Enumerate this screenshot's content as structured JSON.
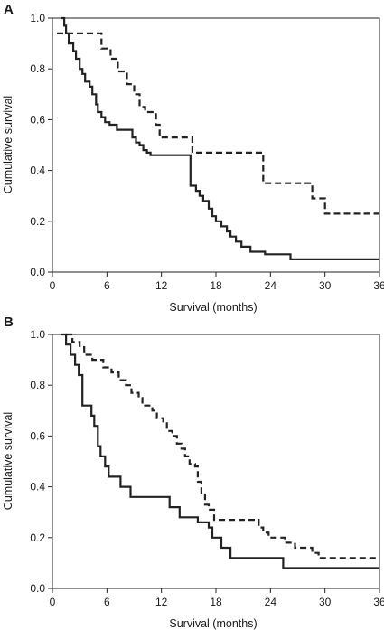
{
  "chart_data": [
    {
      "type": "line",
      "panel_label": "A",
      "xlabel": "Survival (months)",
      "ylabel": "Cumulative survival",
      "xlim": [
        0,
        36
      ],
      "ylim": [
        0,
        1
      ],
      "x_ticks": [
        0,
        6,
        12,
        18,
        24,
        30,
        36
      ],
      "x_tick_labels": [
        "0",
        "6",
        "12",
        "18",
        "24",
        "30",
        "36"
      ],
      "y_ticks": [
        0,
        0.2,
        0.4,
        0.6,
        0.8,
        1
      ],
      "y_tick_labels": [
        "0.0",
        "0.2",
        "0.4",
        "0.6",
        "0.8",
        "1.0"
      ],
      "grid": false,
      "series": [
        {
          "line_style": "solid",
          "color": "#222222",
          "step": true,
          "x": [
            0.9,
            1.3,
            1.5,
            1.8,
            2.3,
            2.6,
            3.0,
            3.3,
            3.6,
            4.1,
            4.4,
            4.8,
            5.0,
            5.4,
            5.8,
            6.3,
            7.1,
            8.8,
            9.2,
            9.6,
            10.0,
            10.4,
            10.8,
            15.2,
            15.8,
            16.2,
            16.6,
            17.2,
            17.6,
            18.0,
            18.6,
            19.2,
            19.6,
            20.2,
            20.8,
            21.8,
            23.4,
            26.2,
            36.0
          ],
          "y": [
            1.0,
            0.97,
            0.94,
            0.9,
            0.87,
            0.84,
            0.8,
            0.78,
            0.75,
            0.73,
            0.7,
            0.66,
            0.63,
            0.61,
            0.59,
            0.58,
            0.56,
            0.53,
            0.51,
            0.5,
            0.48,
            0.47,
            0.46,
            0.34,
            0.32,
            0.3,
            0.28,
            0.25,
            0.22,
            0.2,
            0.18,
            0.16,
            0.14,
            0.12,
            0.1,
            0.08,
            0.07,
            0.05,
            0.05
          ]
        },
        {
          "line_style": "dashed",
          "color": "#222222",
          "step": true,
          "x": [
            0.5,
            1.2,
            1.8,
            3.5,
            5.4,
            5.8,
            6.4,
            7.2,
            8.2,
            9.0,
            9.6,
            10.2,
            11.4,
            11.8,
            12.4,
            15.4,
            22.2,
            23.2,
            28.6,
            30.0,
            36.0
          ],
          "y": [
            0.94,
            0.94,
            0.94,
            0.94,
            0.88,
            0.88,
            0.84,
            0.79,
            0.74,
            0.7,
            0.65,
            0.63,
            0.58,
            0.53,
            0.53,
            0.47,
            0.47,
            0.35,
            0.29,
            0.23,
            0.23
          ]
        }
      ]
    },
    {
      "type": "line",
      "panel_label": "B",
      "xlabel": "Survival (months)",
      "ylabel": "Cumulative survival",
      "xlim": [
        0,
        36
      ],
      "ylim": [
        0,
        1
      ],
      "x_ticks": [
        0,
        6,
        12,
        18,
        24,
        30,
        36
      ],
      "x_tick_labels": [
        "0",
        "6",
        "12",
        "18",
        "24",
        "30",
        "36"
      ],
      "y_ticks": [
        0,
        0.2,
        0.4,
        0.6,
        0.8,
        1
      ],
      "y_tick_labels": [
        "0.0",
        "0.2",
        "0.4",
        "0.6",
        "0.8",
        "1.0"
      ],
      "grid": false,
      "series": [
        {
          "line_style": "solid",
          "color": "#222222",
          "step": true,
          "x": [
            0.9,
            1.5,
            2.0,
            2.5,
            2.9,
            3.3,
            4.3,
            4.6,
            5.0,
            5.3,
            5.8,
            6.2,
            7.5,
            8.6,
            12.9,
            14.0,
            16.0,
            17.2,
            17.6,
            18.6,
            19.6,
            21.0,
            25.4,
            36.0
          ],
          "y": [
            1.0,
            0.96,
            0.92,
            0.88,
            0.84,
            0.72,
            0.68,
            0.64,
            0.56,
            0.52,
            0.48,
            0.44,
            0.4,
            0.36,
            0.32,
            0.28,
            0.26,
            0.24,
            0.2,
            0.16,
            0.12,
            0.12,
            0.08,
            0.08
          ]
        },
        {
          "line_style": "dashed",
          "color": "#222222",
          "step": true,
          "x": [
            1.5,
            2.2,
            3.0,
            3.5,
            4.4,
            5.6,
            6.5,
            7.3,
            8.1,
            8.7,
            9.5,
            9.9,
            11.0,
            11.5,
            12.2,
            12.6,
            13.2,
            13.7,
            14.2,
            14.6,
            15.1,
            15.7,
            16.0,
            16.4,
            16.8,
            17.2,
            17.8,
            20.2,
            22.7,
            23.2,
            23.8,
            25.6,
            26.7,
            28.6,
            29.3,
            36.0
          ],
          "y": [
            1.0,
            0.97,
            0.95,
            0.92,
            0.9,
            0.87,
            0.85,
            0.82,
            0.8,
            0.77,
            0.75,
            0.72,
            0.7,
            0.67,
            0.65,
            0.62,
            0.6,
            0.57,
            0.55,
            0.52,
            0.49,
            0.48,
            0.42,
            0.37,
            0.33,
            0.31,
            0.27,
            0.27,
            0.24,
            0.22,
            0.2,
            0.18,
            0.16,
            0.14,
            0.12,
            0.12
          ]
        }
      ]
    }
  ]
}
